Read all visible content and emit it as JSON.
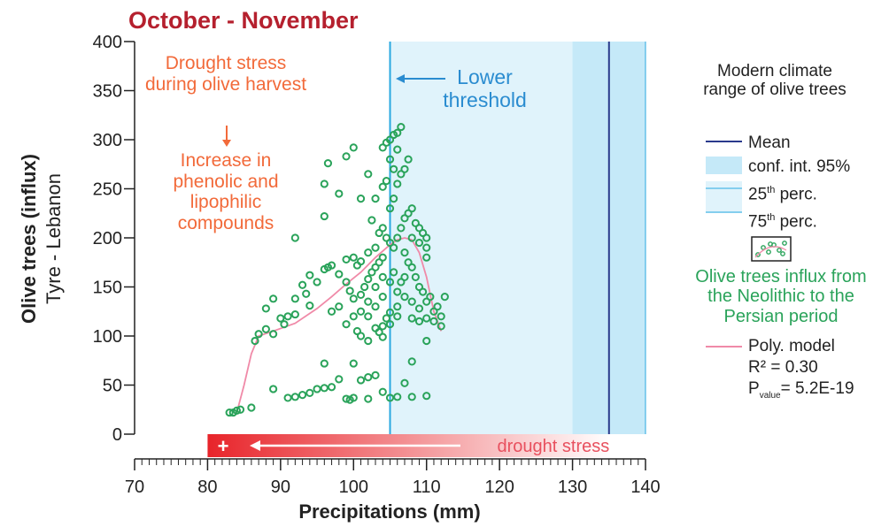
{
  "chart_data": {
    "type": "scatter",
    "title": "October - November",
    "xlabel": "Precipitations (mm)",
    "ylabel": [
      "Olive trees (influx)",
      "Tyre - Lebanon"
    ],
    "xlim": [
      70,
      140
    ],
    "ylim": [
      0,
      400
    ],
    "xticks": [
      70,
      80,
      90,
      100,
      110,
      120,
      130,
      140
    ],
    "xminorticks": [
      70,
      71,
      72,
      73,
      74,
      75,
      76,
      77,
      78,
      79,
      80,
      81,
      82,
      83,
      84,
      85,
      86,
      87,
      88,
      89,
      90,
      91,
      92,
      93,
      94,
      95,
      96,
      97,
      98,
      99,
      100,
      101,
      102,
      103,
      104,
      105,
      106,
      107,
      108,
      109,
      110,
      111,
      112,
      113,
      114,
      115,
      116,
      117,
      118,
      119,
      120,
      121,
      122,
      123,
      124,
      125,
      126,
      127,
      128,
      129,
      130,
      131,
      132,
      133,
      134,
      135,
      136,
      137,
      138,
      139,
      140
    ],
    "yticks": [
      0,
      50,
      100,
      150,
      200,
      250,
      300,
      350,
      400
    ],
    "climate_range": {
      "mean": 135,
      "ci95": [
        130,
        140
      ],
      "perc25": 105,
      "perc75": 140,
      "mean_color": "#2a3a8c",
      "ci_color": "#c5e9f8",
      "perc_color": "#29a8e0",
      "range_color": "#e0f3fb"
    },
    "lower_threshold": {
      "label": "Lower threshold",
      "x": 105,
      "color": "#2a8cd0"
    },
    "drought_bar": {
      "label": "drought stress",
      "sign": "+",
      "range": [
        80,
        135.3
      ],
      "color": "#e8242a"
    },
    "annotations": {
      "stress": "Drought stress during olive harvest",
      "effect": "Increase in phenolic and lipophilic compounds",
      "color": "#f26a3a"
    },
    "legend": {
      "title": "Modern climate range of olive trees",
      "mean": "Mean",
      "ci": "conf. int. 95%",
      "p25": [
        "25",
        "th",
        " perc."
      ],
      "p75": [
        "75",
        "th",
        " perc."
      ],
      "r2": "R² = 0.30",
      "p": [
        "P",
        "value",
        "= 5.2E-19"
      ]
    },
    "series": [
      {
        "name": "Olive trees influx from the Neolithic to the Persian period",
        "color": "#2aa35a",
        "x": [
          83,
          83.5,
          84,
          84.5,
          86,
          89,
          91,
          92,
          93,
          94,
          95,
          96,
          97,
          98,
          99,
          99.5,
          100,
          101,
          102,
          103,
          102,
          105,
          106,
          108,
          110,
          96,
          100,
          108,
          107,
          104,
          86.5,
          87,
          88,
          89,
          88,
          89,
          90,
          90.5,
          91,
          92,
          92,
          93,
          94,
          95,
          93.5,
          94,
          96,
          96.5,
          97,
          98,
          99,
          99.5,
          100,
          98,
          97,
          100,
          99,
          100.5,
          101,
          102,
          103,
          103.5,
          104,
          104,
          104.5,
          105,
          103,
          102,
          101,
          101.5,
          102,
          102.5,
          103,
          103.5,
          104,
          101,
          100,
          100.5,
          99,
          92,
          96,
          96,
          96.5,
          98,
          99,
          100,
          101,
          102,
          102.5,
          103,
          103.5,
          104,
          104.5,
          105,
          105.5,
          106,
          106.5,
          104,
          104.5,
          105,
          105.5,
          106,
          106.5,
          107,
          107.5,
          106,
          105,
          105.5,
          104,
          104.5,
          105,
          105.5,
          106,
          106.5,
          107,
          107.5,
          108,
          108.5,
          109,
          109.5,
          110,
          110,
          110,
          109,
          108,
          107,
          107.5,
          108,
          108.5,
          109,
          109.5,
          110,
          110.5,
          111,
          111.5,
          112,
          112.5,
          112,
          111,
          110,
          109,
          108,
          110,
          106,
          106.5,
          107,
          105,
          105.5,
          104,
          103,
          106,
          107,
          108,
          109,
          106,
          105,
          104,
          102,
          101,
          103,
          102
        ],
        "values": [
          22,
          22,
          24,
          25,
          27,
          46,
          37,
          38,
          40,
          42,
          46,
          47,
          48,
          56,
          36,
          35,
          37,
          55,
          58,
          60,
          36,
          37,
          38,
          38,
          39,
          72,
          72,
          74,
          52,
          43,
          95,
          102,
          107,
          102,
          128,
          138,
          118,
          112,
          120,
          122,
          138,
          152,
          162,
          155,
          143,
          131,
          168,
          170,
          172,
          163,
          155,
          146,
          138,
          130,
          125,
          120,
          112,
          105,
          100,
          95,
          108,
          104,
          99,
          110,
          118,
          124,
          130,
          135,
          142,
          150,
          158,
          165,
          170,
          175,
          180,
          176,
          180,
          172,
          178,
          200,
          222,
          255,
          276,
          245,
          283,
          292,
          240,
          265,
          218,
          240,
          205,
          292,
          297,
          300,
          305,
          307,
          313,
          252,
          258,
          230,
          240,
          255,
          265,
          270,
          280,
          290,
          280,
          270,
          210,
          200,
          195,
          190,
          200,
          210,
          220,
          225,
          230,
          215,
          210,
          205,
          200,
          190,
          180,
          195,
          200,
          185,
          175,
          170,
          160,
          150,
          145,
          135,
          140,
          125,
          130,
          120,
          140,
          110,
          115,
          118,
          115,
          118,
          95,
          145,
          155,
          160,
          155,
          165,
          160,
          150,
          130,
          140,
          135,
          128,
          120,
          112,
          140,
          120,
          125,
          190,
          185
        ]
      },
      {
        "name": "Poly. model",
        "color": "#f08aa8",
        "x": [
          84,
          85,
          86,
          87,
          89,
          92,
          95,
          97,
          99,
          101,
          103,
          105,
          106,
          107,
          108,
          109,
          110,
          111,
          112
        ],
        "values": [
          22,
          50,
          82,
          100,
          105,
          113,
          128,
          140,
          153,
          165,
          180,
          193,
          198,
          200,
          198,
          185,
          160,
          125,
          105
        ]
      }
    ]
  }
}
